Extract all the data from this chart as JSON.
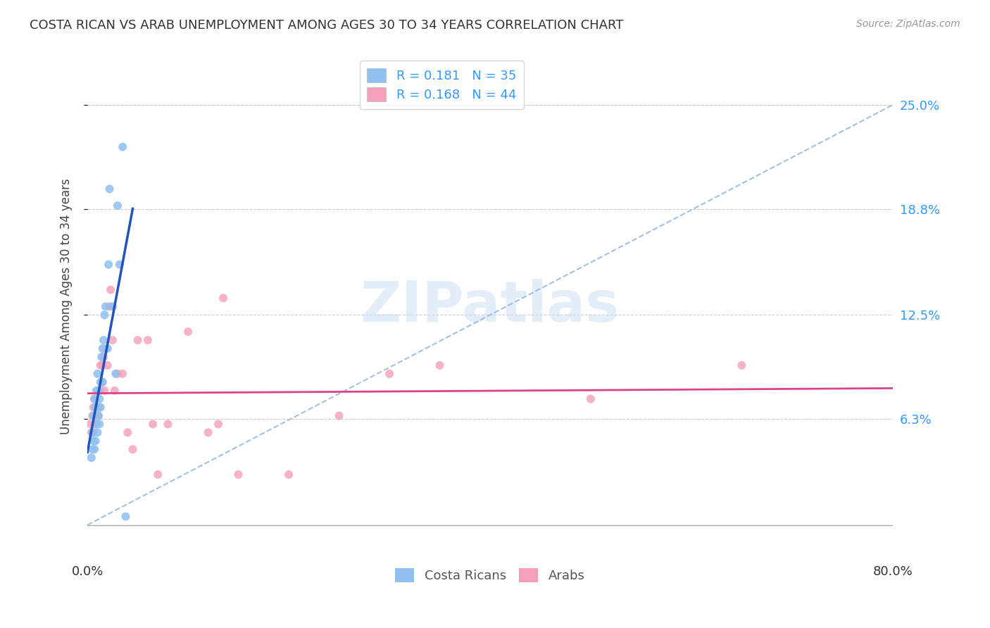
{
  "title": "COSTA RICAN VS ARAB UNEMPLOYMENT AMONG AGES 30 TO 34 YEARS CORRELATION CHART",
  "source": "Source: ZipAtlas.com",
  "ylabel": "Unemployment Among Ages 30 to 34 years",
  "xlim": [
    0.0,
    80.0
  ],
  "ylim": [
    -2.0,
    28.0
  ],
  "xticks": [
    0.0,
    10.0,
    20.0,
    30.0,
    40.0,
    50.0,
    60.0,
    70.0,
    80.0
  ],
  "xticklabels": [
    "0.0%",
    "",
    "",
    "",
    "",
    "",
    "",
    "",
    "80.0%"
  ],
  "ytick_labels_right": [
    "25.0%",
    "18.8%",
    "12.5%",
    "6.3%"
  ],
  "ytick_vals_right": [
    25.0,
    18.8,
    12.5,
    6.3
  ],
  "background_color": "#ffffff",
  "grid_color": "#cccccc",
  "watermark": "ZIPatlas",
  "legend_R1": "0.181",
  "legend_N1": "35",
  "legend_R2": "0.168",
  "legend_N2": "44",
  "color_cr": "#8ec0f0",
  "color_arab": "#f5a0b8",
  "color_cr_line": "#2255bb",
  "color_arab_line": "#dd4488",
  "color_diag_line": "#99bbdd",
  "dot_size": 75,
  "costa_rican_x": [
    0.4,
    0.5,
    0.5,
    0.6,
    0.6,
    0.7,
    0.7,
    0.8,
    0.8,
    0.9,
    0.9,
    1.0,
    1.0,
    1.0,
    1.1,
    1.1,
    1.2,
    1.2,
    1.3,
    1.3,
    1.4,
    1.5,
    1.5,
    1.6,
    1.7,
    1.8,
    2.0,
    2.1,
    2.2,
    2.5,
    2.8,
    3.0,
    3.2,
    3.5,
    3.8
  ],
  "costa_rican_y": [
    4.0,
    4.5,
    5.5,
    5.0,
    6.5,
    4.5,
    7.5,
    5.0,
    7.0,
    6.0,
    8.0,
    5.5,
    7.0,
    9.0,
    6.5,
    8.0,
    6.0,
    7.5,
    7.0,
    8.5,
    10.0,
    8.5,
    10.5,
    11.0,
    12.5,
    13.0,
    10.5,
    15.5,
    20.0,
    13.0,
    9.0,
    19.0,
    15.5,
    22.5,
    0.5
  ],
  "arab_x": [
    0.3,
    0.4,
    0.5,
    0.6,
    0.6,
    0.7,
    0.7,
    0.8,
    0.9,
    1.0,
    1.1,
    1.2,
    1.3,
    1.3,
    1.5,
    1.5,
    1.6,
    1.7,
    1.8,
    2.0,
    2.2,
    2.3,
    2.5,
    2.7,
    3.0,
    3.5,
    4.0,
    4.5,
    5.0,
    6.0,
    6.5,
    7.0,
    8.0,
    10.0,
    12.0,
    13.0,
    15.0,
    20.0,
    25.0,
    30.0,
    35.0,
    50.0,
    65.0,
    13.5
  ],
  "arab_y": [
    6.0,
    5.5,
    6.5,
    5.5,
    7.0,
    6.0,
    7.5,
    7.0,
    6.0,
    6.5,
    6.5,
    7.0,
    8.0,
    9.5,
    8.5,
    9.5,
    10.0,
    8.0,
    10.5,
    9.5,
    13.0,
    14.0,
    11.0,
    8.0,
    9.0,
    9.0,
    5.5,
    4.5,
    11.0,
    11.0,
    6.0,
    3.0,
    6.0,
    11.5,
    5.5,
    6.0,
    3.0,
    3.0,
    6.5,
    9.0,
    9.5,
    7.5,
    9.5,
    13.5
  ],
  "cr_outlier_x": 0.5,
  "cr_outlier_y": 22.5,
  "cr_high_x": 1.0,
  "cr_high_y": 16.5
}
